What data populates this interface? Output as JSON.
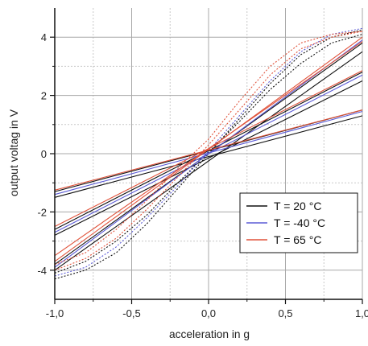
{
  "chart_data": {
    "type": "line",
    "title": "",
    "xlabel": "acceleration in g",
    "ylabel": "output voltag in V",
    "xlim": [
      -1.0,
      1.0
    ],
    "ylim": [
      -5,
      5
    ],
    "x_ticks": [
      -1.0,
      -0.5,
      0.0,
      0.5,
      1.0
    ],
    "x_tick_labels": [
      "-1,0",
      "-0,5",
      "0,0",
      "0,5",
      "1,0"
    ],
    "y_ticks": [
      -4,
      -2,
      0,
      2,
      4
    ],
    "y_tick_labels": [
      "-4",
      "-2",
      "0",
      "2",
      "4"
    ],
    "grid": true,
    "legend": {
      "position": "lower-right",
      "entries": [
        {
          "label": "T = 20 °C",
          "color": "#111111"
        },
        {
          "label": "T = -40 °C",
          "color": "#5b5bd6"
        },
        {
          "label": "T = 65 °C",
          "color": "#e0523a"
        }
      ]
    },
    "series": [
      {
        "temp": "20",
        "color": "#111111",
        "style": "solid",
        "x": [
          -1.0,
          1.0
        ],
        "y": [
          -1.5,
          1.3
        ]
      },
      {
        "temp": "20",
        "color": "#111111",
        "style": "solid",
        "x": [
          -1.0,
          1.0
        ],
        "y": [
          -1.3,
          1.5
        ]
      },
      {
        "temp": "20",
        "color": "#111111",
        "style": "solid",
        "x": [
          -1.0,
          1.0
        ],
        "y": [
          -2.8,
          2.5
        ]
      },
      {
        "temp": "20",
        "color": "#111111",
        "style": "solid",
        "x": [
          -1.0,
          1.0
        ],
        "y": [
          -2.6,
          2.8
        ]
      },
      {
        "temp": "20",
        "color": "#111111",
        "style": "solid",
        "x": [
          -1.0,
          1.0
        ],
        "y": [
          -4.0,
          3.5
        ]
      },
      {
        "temp": "20",
        "color": "#111111",
        "style": "solid",
        "x": [
          -1.0,
          1.0
        ],
        "y": [
          -3.8,
          3.8
        ]
      },
      {
        "temp": "20",
        "color": "#111111",
        "style": "dotted",
        "x": [
          -1.0,
          -0.8,
          -0.6,
          -0.4,
          -0.2,
          0.0,
          0.2,
          0.4,
          0.6,
          0.8,
          1.0
        ],
        "y": [
          -4.3,
          -4.0,
          -3.4,
          -2.4,
          -1.2,
          0.0,
          1.2,
          2.4,
          3.4,
          4.0,
          4.25
        ]
      },
      {
        "temp": "20",
        "color": "#111111",
        "style": "dotted",
        "x": [
          -1.0,
          -0.8,
          -0.6,
          -0.4,
          -0.2,
          0.0,
          0.2,
          0.4,
          0.6,
          0.8,
          1.0
        ],
        "y": [
          -4.1,
          -3.7,
          -3.0,
          -2.1,
          -1.0,
          0.05,
          1.1,
          2.2,
          3.1,
          3.8,
          4.1
        ]
      },
      {
        "temp": "-40",
        "color": "#5b5bd6",
        "style": "solid",
        "x": [
          -1.0,
          1.0
        ],
        "y": [
          -1.4,
          1.45
        ]
      },
      {
        "temp": "-40",
        "color": "#5b5bd6",
        "style": "solid",
        "x": [
          -1.0,
          1.0
        ],
        "y": [
          -2.7,
          2.7
        ]
      },
      {
        "temp": "-40",
        "color": "#5b5bd6",
        "style": "solid",
        "x": [
          -1.0,
          1.0
        ],
        "y": [
          -3.9,
          3.9
        ]
      },
      {
        "temp": "-40",
        "color": "#5b5bd6",
        "style": "dotted",
        "x": [
          -1.0,
          -0.8,
          -0.6,
          -0.4,
          -0.2,
          0.0,
          0.2,
          0.4,
          0.6,
          0.8,
          1.0
        ],
        "y": [
          -4.2,
          -3.9,
          -3.2,
          -2.2,
          -1.1,
          0.1,
          1.3,
          2.5,
          3.5,
          4.1,
          4.3
        ]
      },
      {
        "temp": "65",
        "color": "#e0523a",
        "style": "solid",
        "x": [
          -1.0,
          1.0
        ],
        "y": [
          -1.25,
          1.5
        ]
      },
      {
        "temp": "65",
        "color": "#e0523a",
        "style": "solid",
        "x": [
          -1.0,
          1.0
        ],
        "y": [
          -2.5,
          2.85
        ]
      },
      {
        "temp": "65",
        "color": "#e0523a",
        "style": "solid",
        "x": [
          -1.0,
          1.0
        ],
        "y": [
          -3.5,
          3.85
        ]
      },
      {
        "temp": "65",
        "color": "#e0523a",
        "style": "solid",
        "x": [
          -1.0,
          1.0
        ],
        "y": [
          -3.7,
          4.0
        ]
      },
      {
        "temp": "65",
        "color": "#e0523a",
        "style": "dotted",
        "x": [
          -1.0,
          -0.8,
          -0.6,
          -0.4,
          -0.2,
          0.0,
          0.2,
          0.4,
          0.6,
          0.8,
          1.0
        ],
        "y": [
          -4.0,
          -3.6,
          -2.9,
          -1.9,
          -0.8,
          0.3,
          1.5,
          2.7,
          3.6,
          4.0,
          4.2
        ]
      },
      {
        "temp": "65",
        "color": "#e0523a",
        "style": "dotted",
        "x": [
          -1.0,
          -0.8,
          -0.6,
          -0.4,
          -0.2,
          0.0,
          0.2,
          0.4,
          0.6,
          0.8,
          1.0
        ],
        "y": [
          -3.8,
          -3.4,
          -2.6,
          -1.6,
          -0.5,
          0.5,
          1.8,
          3.0,
          3.8,
          4.1,
          4.2
        ]
      }
    ]
  }
}
